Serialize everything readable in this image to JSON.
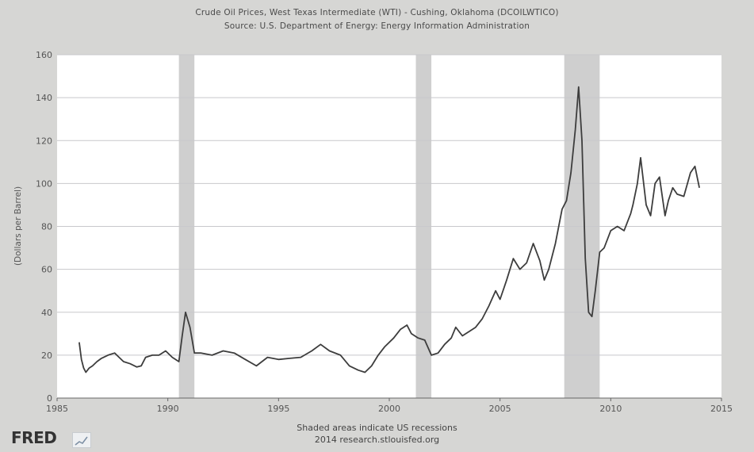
{
  "chart_data": {
    "type": "line",
    "title": "Crude Oil Prices, West Texas Intermediate (WTI) - Cushing, Oklahoma (DCOILWTICO)",
    "subtitle": "Source: U.S. Department of Energy: Energy Information Administration",
    "ylabel": "(Dollars per Barrel)",
    "xlabel": "Shaded areas indicate US recessions",
    "footnote": "2014 research.stlouisfed.org",
    "xlim": [
      1985,
      2015
    ],
    "ylim": [
      0,
      160
    ],
    "x_ticks": [
      "1985",
      "1990",
      "1995",
      "2000",
      "2005",
      "2010",
      "2015"
    ],
    "y_ticks": [
      "0",
      "20",
      "40",
      "60",
      "80",
      "100",
      "120",
      "140",
      "160"
    ],
    "grid": true,
    "recessions": [
      [
        1990.5,
        1991.2
      ],
      [
        2001.2,
        2001.9
      ],
      [
        2007.9,
        2009.5
      ]
    ],
    "line_color": "#3d3d3d",
    "recession_color": "#cfcfcf",
    "series": [
      {
        "x": [
          1986.0,
          1986.1,
          1986.2,
          1986.3,
          1986.45,
          1986.6,
          1986.8,
          1987.0,
          1987.3,
          1987.6,
          1987.8,
          1988.0,
          1988.3,
          1988.6,
          1988.8,
          1989.0,
          1989.3,
          1989.6,
          1989.9,
          1990.2,
          1990.5,
          1990.65,
          1990.8,
          1991.0,
          1991.2,
          1991.5,
          1992.0,
          1992.5,
          1993.0,
          1993.5,
          1994.0,
          1994.5,
          1995.0,
          1995.5,
          1996.0,
          1996.5,
          1996.9,
          1997.3,
          1997.8,
          1998.2,
          1998.6,
          1998.9,
          1999.2,
          1999.5,
          1999.8,
          2000.2,
          2000.5,
          2000.8,
          2001.0,
          2001.3,
          2001.6,
          2001.9,
          2002.2,
          2002.5,
          2002.8,
          2003.0,
          2003.3,
          2003.6,
          2003.9,
          2004.2,
          2004.5,
          2004.8,
          2005.0,
          2005.3,
          2005.6,
          2005.9,
          2006.2,
          2006.5,
          2006.8,
          2007.0,
          2007.2,
          2007.5,
          2007.8,
          2008.0,
          2008.2,
          2008.4,
          2008.55,
          2008.7,
          2008.85,
          2009.0,
          2009.15,
          2009.3,
          2009.5,
          2009.7,
          2010.0,
          2010.3,
          2010.6,
          2010.9,
          2011.0,
          2011.2,
          2011.35,
          2011.6,
          2011.8,
          2012.0,
          2012.2,
          2012.45,
          2012.6,
          2012.8,
          2013.0,
          2013.3,
          2013.6,
          2013.8,
          2014.0
        ],
        "y": [
          26,
          18,
          14,
          12,
          14,
          15,
          17,
          18.5,
          20,
          21,
          19,
          17,
          16,
          14.5,
          15,
          19,
          20,
          20,
          22,
          19,
          17,
          29,
          40,
          33,
          21,
          21,
          20,
          22,
          21,
          18,
          15,
          19,
          18,
          18.5,
          19,
          22,
          25,
          22,
          20,
          15,
          13,
          12,
          15,
          20,
          24,
          28,
          32,
          34,
          30,
          28,
          27,
          20,
          21,
          25,
          28,
          33,
          29,
          31,
          33,
          37,
          43,
          50,
          46,
          55,
          65,
          60,
          63,
          72,
          64,
          55,
          60,
          72,
          88,
          92,
          105,
          125,
          145,
          120,
          65,
          40,
          38,
          50,
          68,
          70,
          78,
          80,
          78,
          86,
          90,
          100,
          112,
          90,
          85,
          100,
          103,
          85,
          92,
          98,
          95,
          94,
          105,
          108,
          98
        ]
      }
    ]
  }
}
